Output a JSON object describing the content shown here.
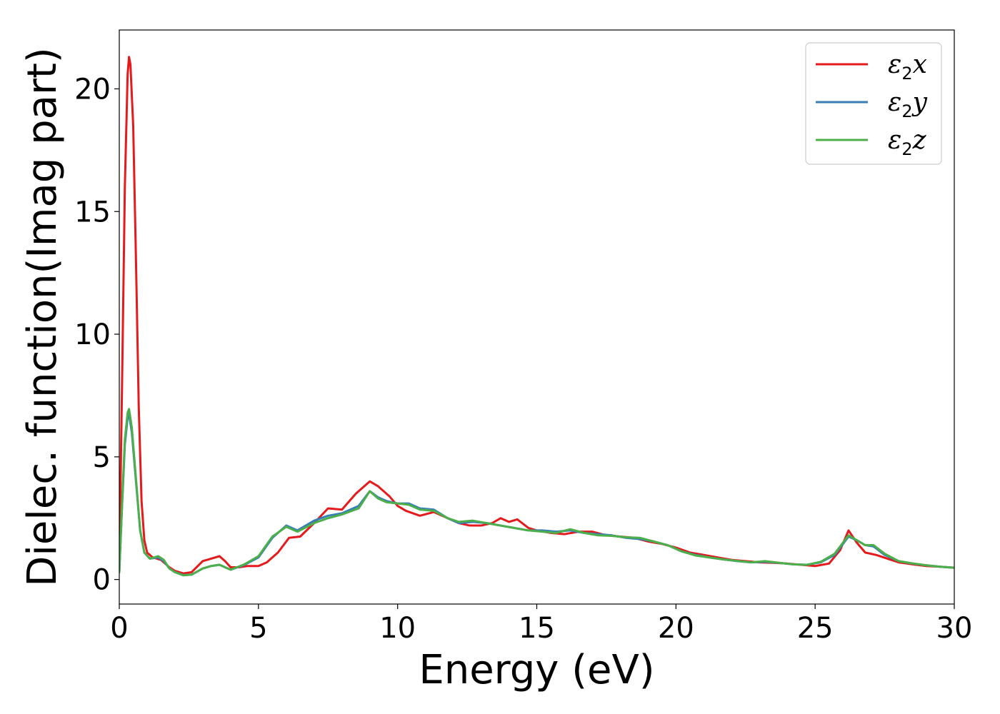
{
  "chart_data": {
    "type": "line",
    "title": "",
    "xlabel": "Energy (eV)",
    "ylabel": "Dielec. function(Imag part)",
    "xlim": [
      0,
      30
    ],
    "ylim": [
      -1,
      22.4
    ],
    "xticks": [
      0,
      5,
      10,
      15,
      20,
      25,
      30
    ],
    "yticks": [
      0,
      5,
      10,
      15,
      20
    ],
    "xtick_labels": [
      "0",
      "5",
      "10",
      "15",
      "20",
      "25",
      "30"
    ],
    "ytick_labels": [
      "0",
      "5",
      "10",
      "15",
      "20"
    ],
    "grid": false,
    "legend_position": "top-right",
    "series": [
      {
        "name": "ε2x",
        "legend_base": "ε",
        "legend_sub": "2",
        "legend_var": "x",
        "color": "#e41a1c",
        "points": [
          [
            0,
            0.5
          ],
          [
            0.1,
            8.0
          ],
          [
            0.2,
            16.0
          ],
          [
            0.3,
            20.6
          ],
          [
            0.35,
            21.3
          ],
          [
            0.4,
            21.0
          ],
          [
            0.5,
            18.5
          ],
          [
            0.6,
            13.0
          ],
          [
            0.7,
            7.0
          ],
          [
            0.8,
            3.2
          ],
          [
            0.9,
            1.6
          ],
          [
            1.0,
            1.1
          ],
          [
            1.2,
            0.9
          ],
          [
            1.5,
            0.8
          ],
          [
            1.8,
            0.5
          ],
          [
            2.0,
            0.35
          ],
          [
            2.3,
            0.25
          ],
          [
            2.6,
            0.3
          ],
          [
            3.0,
            0.75
          ],
          [
            3.3,
            0.85
          ],
          [
            3.6,
            0.95
          ],
          [
            3.8,
            0.75
          ],
          [
            4.0,
            0.5
          ],
          [
            4.3,
            0.5
          ],
          [
            4.6,
            0.55
          ],
          [
            5.0,
            0.55
          ],
          [
            5.3,
            0.7
          ],
          [
            5.7,
            1.1
          ],
          [
            6.1,
            1.7
          ],
          [
            6.5,
            1.75
          ],
          [
            7.0,
            2.3
          ],
          [
            7.5,
            2.9
          ],
          [
            8.0,
            2.85
          ],
          [
            8.5,
            3.5
          ],
          [
            9.0,
            4.0
          ],
          [
            9.3,
            3.8
          ],
          [
            9.7,
            3.4
          ],
          [
            10.0,
            3.0
          ],
          [
            10.3,
            2.8
          ],
          [
            10.8,
            2.6
          ],
          [
            11.3,
            2.75
          ],
          [
            11.8,
            2.5
          ],
          [
            12.2,
            2.3
          ],
          [
            12.6,
            2.2
          ],
          [
            13.0,
            2.2
          ],
          [
            13.4,
            2.3
          ],
          [
            13.7,
            2.5
          ],
          [
            14.0,
            2.35
          ],
          [
            14.3,
            2.45
          ],
          [
            14.7,
            2.1
          ],
          [
            15.0,
            2.0
          ],
          [
            15.5,
            1.9
          ],
          [
            16.0,
            1.85
          ],
          [
            16.5,
            1.95
          ],
          [
            17.0,
            1.95
          ],
          [
            17.5,
            1.8
          ],
          [
            18.0,
            1.75
          ],
          [
            18.5,
            1.7
          ],
          [
            19.0,
            1.55
          ],
          [
            19.5,
            1.45
          ],
          [
            20.0,
            1.3
          ],
          [
            20.5,
            1.1
          ],
          [
            21.0,
            1.0
          ],
          [
            21.5,
            0.9
          ],
          [
            22.0,
            0.8
          ],
          [
            22.5,
            0.75
          ],
          [
            23.0,
            0.7
          ],
          [
            23.5,
            0.68
          ],
          [
            24.0,
            0.65
          ],
          [
            24.5,
            0.6
          ],
          [
            25.0,
            0.55
          ],
          [
            25.5,
            0.65
          ],
          [
            25.9,
            1.2
          ],
          [
            26.2,
            2.0
          ],
          [
            26.5,
            1.5
          ],
          [
            26.8,
            1.1
          ],
          [
            27.2,
            1.0
          ],
          [
            27.6,
            0.85
          ],
          [
            28.0,
            0.7
          ],
          [
            28.5,
            0.62
          ],
          [
            29.0,
            0.55
          ],
          [
            29.5,
            0.52
          ],
          [
            30.0,
            0.48
          ]
        ]
      },
      {
        "name": "ε2y",
        "legend_base": "ε",
        "legend_sub": "2",
        "legend_var": "y",
        "color": "#377eb8",
        "points": [
          [
            0,
            0.3
          ],
          [
            0.1,
            3.0
          ],
          [
            0.2,
            5.5
          ],
          [
            0.3,
            6.6
          ],
          [
            0.35,
            6.75
          ],
          [
            0.45,
            6.0
          ],
          [
            0.6,
            4.0
          ],
          [
            0.75,
            2.0
          ],
          [
            0.9,
            1.1
          ],
          [
            1.1,
            0.85
          ],
          [
            1.4,
            0.9
          ],
          [
            1.6,
            0.75
          ],
          [
            1.8,
            0.45
          ],
          [
            2.0,
            0.3
          ],
          [
            2.3,
            0.18
          ],
          [
            2.6,
            0.2
          ],
          [
            3.0,
            0.45
          ],
          [
            3.3,
            0.55
          ],
          [
            3.6,
            0.6
          ],
          [
            3.8,
            0.5
          ],
          [
            4.0,
            0.4
          ],
          [
            4.5,
            0.6
          ],
          [
            5.0,
            0.9
          ],
          [
            5.5,
            1.7
          ],
          [
            6.0,
            2.2
          ],
          [
            6.4,
            2.0
          ],
          [
            7.0,
            2.4
          ],
          [
            7.5,
            2.6
          ],
          [
            8.0,
            2.7
          ],
          [
            8.6,
            3.0
          ],
          [
            9.0,
            3.6
          ],
          [
            9.3,
            3.35
          ],
          [
            9.6,
            3.2
          ],
          [
            10.0,
            3.1
          ],
          [
            10.4,
            3.1
          ],
          [
            10.8,
            2.9
          ],
          [
            11.3,
            2.85
          ],
          [
            11.8,
            2.5
          ],
          [
            12.2,
            2.3
          ],
          [
            12.7,
            2.35
          ],
          [
            13.2,
            2.3
          ],
          [
            13.7,
            2.2
          ],
          [
            14.2,
            2.1
          ],
          [
            14.7,
            2.0
          ],
          [
            15.2,
            2.0
          ],
          [
            15.7,
            1.95
          ],
          [
            16.2,
            2.0
          ],
          [
            16.7,
            1.9
          ],
          [
            17.2,
            1.85
          ],
          [
            17.7,
            1.8
          ],
          [
            18.2,
            1.7
          ],
          [
            18.7,
            1.65
          ],
          [
            19.2,
            1.55
          ],
          [
            19.7,
            1.4
          ],
          [
            20.2,
            1.15
          ],
          [
            20.7,
            1.0
          ],
          [
            21.2,
            0.9
          ],
          [
            21.7,
            0.82
          ],
          [
            22.2,
            0.75
          ],
          [
            22.7,
            0.7
          ],
          [
            23.2,
            0.72
          ],
          [
            23.7,
            0.68
          ],
          [
            24.2,
            0.62
          ],
          [
            24.7,
            0.6
          ],
          [
            25.2,
            0.7
          ],
          [
            25.7,
            1.0
          ],
          [
            26.2,
            1.75
          ],
          [
            26.5,
            1.6
          ],
          [
            26.8,
            1.4
          ],
          [
            27.1,
            1.35
          ],
          [
            27.5,
            1.0
          ],
          [
            28.0,
            0.75
          ],
          [
            28.5,
            0.65
          ],
          [
            29.0,
            0.58
          ],
          [
            29.5,
            0.52
          ],
          [
            30.0,
            0.48
          ]
        ]
      },
      {
        "name": "ε2z",
        "legend_base": "ε",
        "legend_sub": "2",
        "legend_var": "z",
        "color": "#4daf4a",
        "points": [
          [
            0,
            0.3
          ],
          [
            0.1,
            3.1
          ],
          [
            0.2,
            5.7
          ],
          [
            0.3,
            6.8
          ],
          [
            0.35,
            6.95
          ],
          [
            0.45,
            6.2
          ],
          [
            0.6,
            4.1
          ],
          [
            0.75,
            2.0
          ],
          [
            0.9,
            1.1
          ],
          [
            1.1,
            0.85
          ],
          [
            1.4,
            0.95
          ],
          [
            1.6,
            0.8
          ],
          [
            1.8,
            0.45
          ],
          [
            2.0,
            0.3
          ],
          [
            2.3,
            0.17
          ],
          [
            2.6,
            0.2
          ],
          [
            3.0,
            0.45
          ],
          [
            3.3,
            0.55
          ],
          [
            3.6,
            0.6
          ],
          [
            3.8,
            0.5
          ],
          [
            4.0,
            0.4
          ],
          [
            4.5,
            0.62
          ],
          [
            5.0,
            0.95
          ],
          [
            5.5,
            1.75
          ],
          [
            6.0,
            2.15
          ],
          [
            6.4,
            1.95
          ],
          [
            7.0,
            2.3
          ],
          [
            7.5,
            2.5
          ],
          [
            8.0,
            2.65
          ],
          [
            8.6,
            2.9
          ],
          [
            9.0,
            3.6
          ],
          [
            9.3,
            3.3
          ],
          [
            9.6,
            3.15
          ],
          [
            10.0,
            3.1
          ],
          [
            10.4,
            3.05
          ],
          [
            10.8,
            2.85
          ],
          [
            11.3,
            2.8
          ],
          [
            11.8,
            2.5
          ],
          [
            12.2,
            2.35
          ],
          [
            12.7,
            2.4
          ],
          [
            13.2,
            2.3
          ],
          [
            13.7,
            2.2
          ],
          [
            14.2,
            2.1
          ],
          [
            14.7,
            2.0
          ],
          [
            15.2,
            1.95
          ],
          [
            15.7,
            1.9
          ],
          [
            16.2,
            2.05
          ],
          [
            16.7,
            1.9
          ],
          [
            17.2,
            1.8
          ],
          [
            17.7,
            1.78
          ],
          [
            18.2,
            1.72
          ],
          [
            18.7,
            1.7
          ],
          [
            19.2,
            1.55
          ],
          [
            19.7,
            1.4
          ],
          [
            20.2,
            1.15
          ],
          [
            20.7,
            0.98
          ],
          [
            21.2,
            0.9
          ],
          [
            21.7,
            0.82
          ],
          [
            22.2,
            0.76
          ],
          [
            22.7,
            0.7
          ],
          [
            23.2,
            0.75
          ],
          [
            23.7,
            0.68
          ],
          [
            24.2,
            0.62
          ],
          [
            24.7,
            0.6
          ],
          [
            25.2,
            0.72
          ],
          [
            25.7,
            1.05
          ],
          [
            26.2,
            1.8
          ],
          [
            26.5,
            1.6
          ],
          [
            26.8,
            1.4
          ],
          [
            27.1,
            1.4
          ],
          [
            27.5,
            1.05
          ],
          [
            28.0,
            0.75
          ],
          [
            28.5,
            0.66
          ],
          [
            29.0,
            0.58
          ],
          [
            29.5,
            0.52
          ],
          [
            30.0,
            0.48
          ]
        ]
      }
    ]
  }
}
